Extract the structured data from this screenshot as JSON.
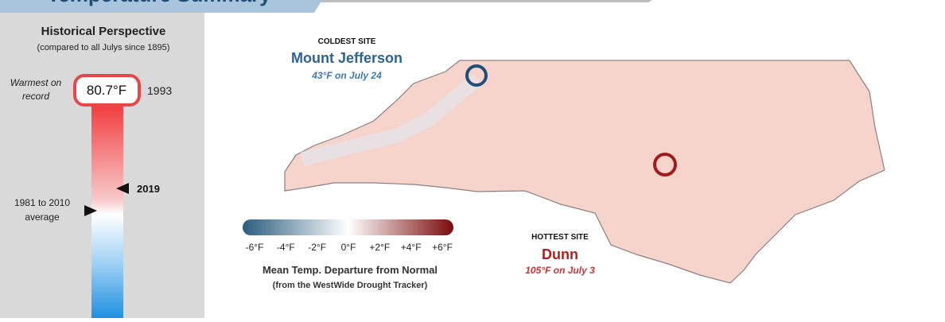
{
  "header": {
    "title": "Temperature Summary"
  },
  "perspective": {
    "title": "Historical Perspective",
    "subtitle": "(compared to all Julys since 1895)",
    "record_label": "Warmest on record",
    "record_value": "80.7°F",
    "record_year": "1993",
    "current_year": "2019",
    "average_label": "1981 to 2010 average"
  },
  "map": {
    "coldest": {
      "heading": "COLDEST SITE",
      "name": "Mount Jefferson",
      "detail": "43°F on July 24"
    },
    "hottest": {
      "heading": "HOTTEST SITE",
      "name": "Dunn",
      "detail": "105°F on July 3"
    },
    "legend": {
      "ticks": [
        "-6°F",
        "-4°F",
        "-2°F",
        "0°F",
        "+2°F",
        "+4°F",
        "+6°F"
      ],
      "title": "Mean Temp. Departure from Normal",
      "subtitle": "(from the WestWide Drought Tracker)"
    }
  }
}
